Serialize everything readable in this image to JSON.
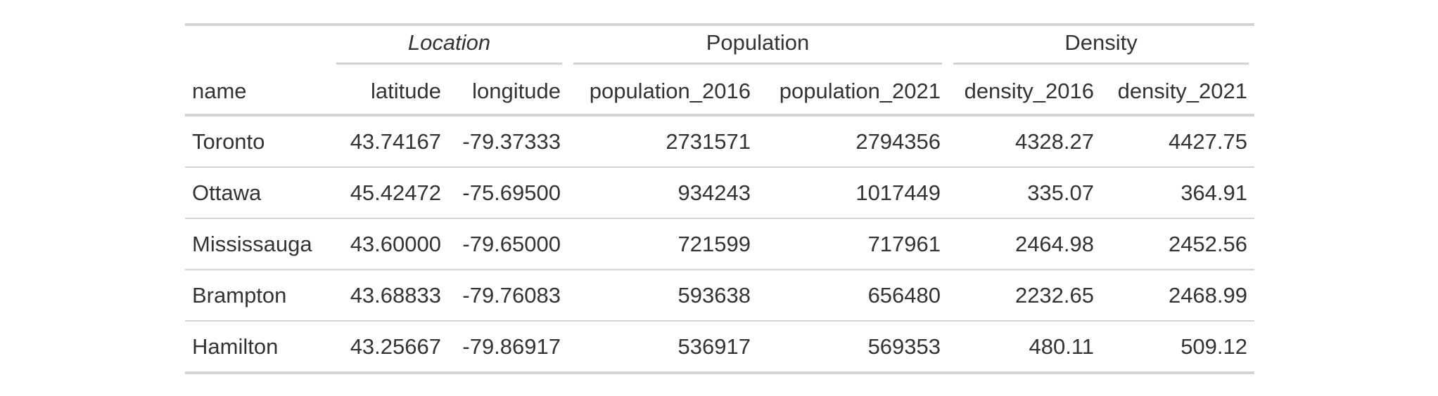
{
  "spanners": {
    "location": "Location",
    "population": "Population",
    "density": "Density"
  },
  "columns": {
    "name": "name",
    "latitude": "latitude",
    "longitude": "longitude",
    "population_2016": "population_2016",
    "population_2021": "population_2021",
    "density_2016": "density_2016",
    "density_2021": "density_2021"
  },
  "rows": [
    {
      "name": "Toronto",
      "latitude": "43.74167",
      "longitude": "-79.37333",
      "population_2016": "2731571",
      "population_2021": "2794356",
      "density_2016": "4328.27",
      "density_2021": "4427.75"
    },
    {
      "name": "Ottawa",
      "latitude": "45.42472",
      "longitude": "-75.69500",
      "population_2016": "934243",
      "population_2021": "1017449",
      "density_2016": "335.07",
      "density_2021": "364.91"
    },
    {
      "name": "Mississauga",
      "latitude": "43.60000",
      "longitude": "-79.65000",
      "population_2016": "721599",
      "population_2021": "717961",
      "density_2016": "2464.98",
      "density_2021": "2452.56"
    },
    {
      "name": "Brampton",
      "latitude": "43.68833",
      "longitude": "-79.76083",
      "population_2016": "593638",
      "population_2021": "656480",
      "density_2016": "2232.65",
      "density_2021": "2468.99"
    },
    {
      "name": "Hamilton",
      "latitude": "43.25667",
      "longitude": "-79.86917",
      "population_2016": "536917",
      "population_2021": "569353",
      "density_2016": "480.11",
      "density_2021": "509.12"
    }
  ]
}
